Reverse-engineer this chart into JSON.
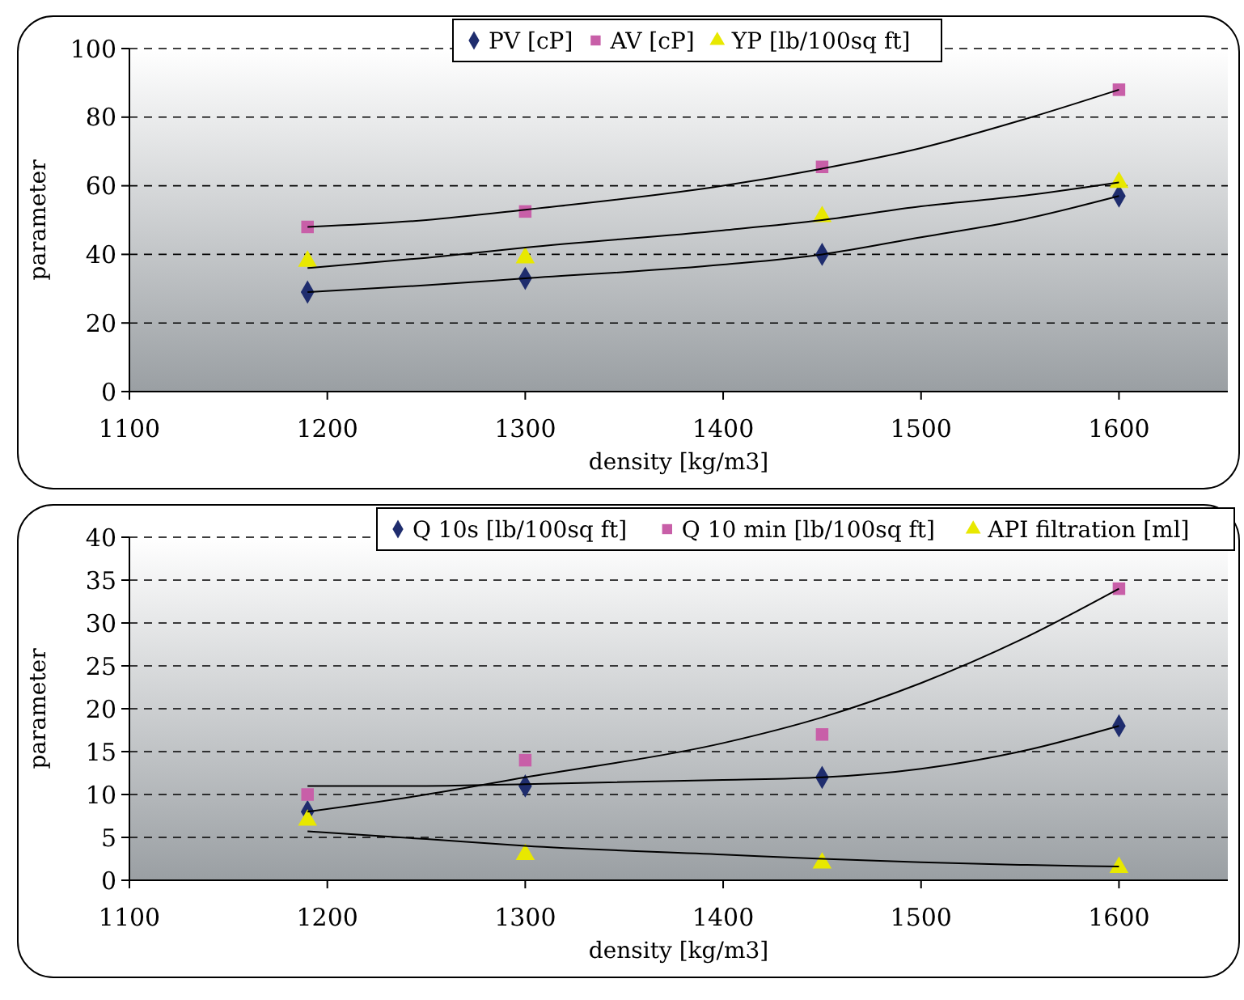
{
  "chart_data": [
    {
      "type": "scatter",
      "xlabel": "density [kg/m3]",
      "ylabel": "parameter",
      "xlim": [
        1100,
        1655
      ],
      "xticks": [
        1100,
        1200,
        1300,
        1400,
        1500,
        1600
      ],
      "ylim": [
        0,
        100
      ],
      "yticks": [
        0,
        20,
        40,
        60,
        80,
        100
      ],
      "grid": "y",
      "legend": "top",
      "x": [
        1190,
        1300,
        1450,
        1600
      ],
      "series": [
        {
          "name": "PV [cP]",
          "color": "#1f2d6e",
          "marker": "diamond",
          "values": [
            29,
            33,
            40,
            57
          ]
        },
        {
          "name": "AV [cP]",
          "color": "#c85fa8",
          "marker": "square",
          "values": [
            48,
            52.5,
            65.5,
            88
          ]
        },
        {
          "name": "YP [lb/100sq ft]",
          "color": "#e8e800",
          "marker": "triangle",
          "values": [
            38,
            39,
            51,
            61
          ]
        },
        {
          "type": "line",
          "color": "#000000",
          "x": [
            1190,
            1250,
            1300,
            1400,
            1450,
            1500,
            1550,
            1600
          ],
          "values": [
            29,
            31,
            33,
            37,
            40,
            45,
            50,
            57
          ]
        },
        {
          "type": "line",
          "color": "#000000",
          "x": [
            1190,
            1250,
            1300,
            1400,
            1450,
            1500,
            1550,
            1600
          ],
          "values": [
            48,
            50,
            53,
            60,
            65,
            71,
            79,
            88
          ]
        },
        {
          "type": "line",
          "color": "#000000",
          "x": [
            1190,
            1250,
            1300,
            1400,
            1450,
            1500,
            1550,
            1600
          ],
          "values": [
            36,
            39,
            42,
            47,
            50,
            54,
            57,
            61
          ]
        }
      ]
    },
    {
      "type": "scatter",
      "xlabel": "density [kg/m3]",
      "ylabel": "parameter",
      "xlim": [
        1100,
        1655
      ],
      "xticks": [
        1100,
        1200,
        1300,
        1400,
        1500,
        1600
      ],
      "ylim": [
        0,
        40
      ],
      "yticks": [
        0,
        5,
        10,
        15,
        20,
        25,
        30,
        35,
        40
      ],
      "grid": "y",
      "legend": "top right",
      "x": [
        1190,
        1300,
        1450,
        1600
      ],
      "series": [
        {
          "name": "Q 10s [lb/100sq ft]",
          "color": "#1f2d6e",
          "marker": "diamond",
          "values": [
            8,
            11,
            12,
            18
          ]
        },
        {
          "name": "Q 10 min [lb/100sq ft]",
          "color": "#c85fa8",
          "marker": "square",
          "values": [
            10,
            14,
            17,
            34
          ]
        },
        {
          "name": "API filtration [ml]",
          "color": "#e8e800",
          "marker": "triangle",
          "values": [
            7,
            3,
            2,
            1.5
          ]
        },
        {
          "type": "line",
          "color": "#000000",
          "x": [
            1190,
            1250,
            1300,
            1400,
            1450,
            1500,
            1550,
            1600
          ],
          "values": [
            11,
            11,
            11.2,
            11.7,
            12,
            13,
            15,
            18
          ]
        },
        {
          "type": "line",
          "color": "#000000",
          "x": [
            1190,
            1250,
            1300,
            1400,
            1450,
            1500,
            1550,
            1600
          ],
          "values": [
            8,
            10,
            12,
            16,
            19,
            23,
            28,
            34
          ]
        },
        {
          "type": "line",
          "color": "#000000",
          "x": [
            1190,
            1250,
            1300,
            1400,
            1450,
            1500,
            1550,
            1600
          ],
          "values": [
            5.7,
            4.8,
            4,
            3,
            2.5,
            2.1,
            1.8,
            1.6
          ]
        }
      ]
    }
  ]
}
